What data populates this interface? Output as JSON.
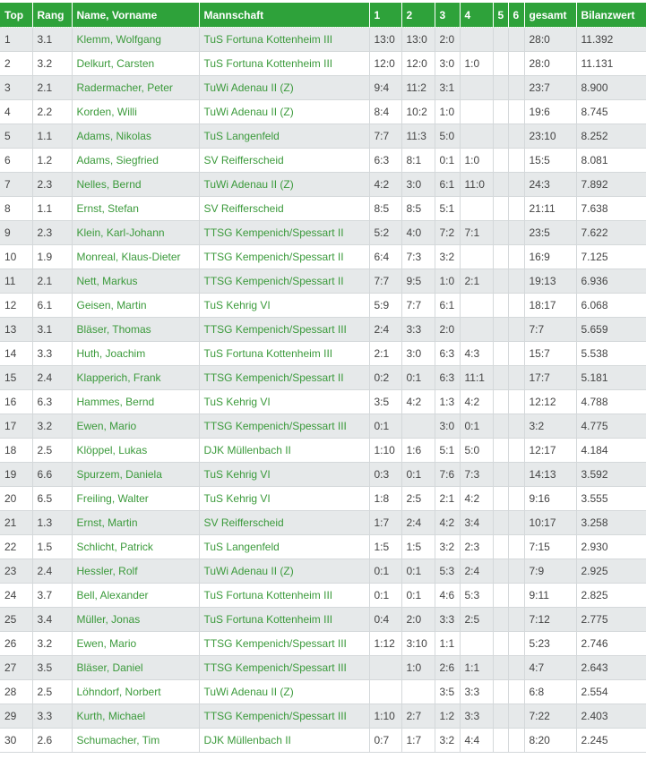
{
  "colors": {
    "header_bg": "#2ea23a",
    "link": "#3b9a3b",
    "row_alt": "#e6e9ea"
  },
  "headers": [
    "Top",
    "Rang",
    "Name, Vorname",
    "Mannschaft",
    "1",
    "2",
    "3",
    "4",
    "5",
    "6",
    "gesamt",
    "Bilanzwert"
  ],
  "rows": [
    [
      "1",
      "3.1",
      "Klemm, Wolfgang",
      "TuS Fortuna Kottenheim III",
      "13:0",
      "13:0",
      "2:0",
      "",
      "",
      "",
      "28:0",
      "11.392"
    ],
    [
      "2",
      "3.2",
      "Delkurt, Carsten",
      "TuS Fortuna Kottenheim III",
      "12:0",
      "12:0",
      "3:0",
      "1:0",
      "",
      "",
      "28:0",
      "11.131"
    ],
    [
      "3",
      "2.1",
      "Radermacher, Peter",
      "TuWi Adenau II (Z)",
      "9:4",
      "11:2",
      "3:1",
      "",
      "",
      "",
      "23:7",
      "8.900"
    ],
    [
      "4",
      "2.2",
      "Korden, Willi",
      "TuWi Adenau II (Z)",
      "8:4",
      "10:2",
      "1:0",
      "",
      "",
      "",
      "19:6",
      "8.745"
    ],
    [
      "5",
      "1.1",
      "Adams, Nikolas",
      "TuS Langenfeld",
      "7:7",
      "11:3",
      "5:0",
      "",
      "",
      "",
      "23:10",
      "8.252"
    ],
    [
      "6",
      "1.2",
      "Adams, Siegfried",
      "SV Reifferscheid",
      "6:3",
      "8:1",
      "0:1",
      "1:0",
      "",
      "",
      "15:5",
      "8.081"
    ],
    [
      "7",
      "2.3",
      "Nelles, Bernd",
      "TuWi Adenau II (Z)",
      "4:2",
      "3:0",
      "6:1",
      "11:0",
      "",
      "",
      "24:3",
      "7.892"
    ],
    [
      "8",
      "1.1",
      "Ernst, Stefan",
      "SV Reifferscheid",
      "8:5",
      "8:5",
      "5:1",
      "",
      "",
      "",
      "21:11",
      "7.638"
    ],
    [
      "9",
      "2.3",
      "Klein, Karl-Johann",
      "TTSG Kempenich/Spessart II",
      "5:2",
      "4:0",
      "7:2",
      "7:1",
      "",
      "",
      "23:5",
      "7.622"
    ],
    [
      "10",
      "1.9",
      "Monreal, Klaus-Dieter",
      "TTSG Kempenich/Spessart II",
      "6:4",
      "7:3",
      "3:2",
      "",
      "",
      "",
      "16:9",
      "7.125"
    ],
    [
      "11",
      "2.1",
      "Nett, Markus",
      "TTSG Kempenich/Spessart II",
      "7:7",
      "9:5",
      "1:0",
      "2:1",
      "",
      "",
      "19:13",
      "6.936"
    ],
    [
      "12",
      "6.1",
      "Geisen, Martin",
      "TuS Kehrig VI",
      "5:9",
      "7:7",
      "6:1",
      "",
      "",
      "",
      "18:17",
      "6.068"
    ],
    [
      "13",
      "3.1",
      "Bläser, Thomas",
      "TTSG Kempenich/Spessart III",
      "2:4",
      "3:3",
      "2:0",
      "",
      "",
      "",
      "7:7",
      "5.659"
    ],
    [
      "14",
      "3.3",
      "Huth, Joachim",
      "TuS Fortuna Kottenheim III",
      "2:1",
      "3:0",
      "6:3",
      "4:3",
      "",
      "",
      "15:7",
      "5.538"
    ],
    [
      "15",
      "2.4",
      "Klapperich, Frank",
      "TTSG Kempenich/Spessart II",
      "0:2",
      "0:1",
      "6:3",
      "11:1",
      "",
      "",
      "17:7",
      "5.181"
    ],
    [
      "16",
      "6.3",
      "Hammes, Bernd",
      "TuS Kehrig VI",
      "3:5",
      "4:2",
      "1:3",
      "4:2",
      "",
      "",
      "12:12",
      "4.788"
    ],
    [
      "17",
      "3.2",
      "Ewen, Mario",
      "TTSG Kempenich/Spessart III",
      "0:1",
      "",
      "3:0",
      "0:1",
      "",
      "",
      "3:2",
      "4.775"
    ],
    [
      "18",
      "2.5",
      "Klöppel, Lukas",
      "DJK Müllenbach II",
      "1:10",
      "1:6",
      "5:1",
      "5:0",
      "",
      "",
      "12:17",
      "4.184"
    ],
    [
      "19",
      "6.6",
      "Spurzem, Daniela",
      "TuS Kehrig VI",
      "0:3",
      "0:1",
      "7:6",
      "7:3",
      "",
      "",
      "14:13",
      "3.592"
    ],
    [
      "20",
      "6.5",
      "Freiling, Walter",
      "TuS Kehrig VI",
      "1:8",
      "2:5",
      "2:1",
      "4:2",
      "",
      "",
      "9:16",
      "3.555"
    ],
    [
      "21",
      "1.3",
      "Ernst, Martin",
      "SV Reifferscheid",
      "1:7",
      "2:4",
      "4:2",
      "3:4",
      "",
      "",
      "10:17",
      "3.258"
    ],
    [
      "22",
      "1.5",
      "Schlicht, Patrick",
      "TuS Langenfeld",
      "1:5",
      "1:5",
      "3:2",
      "2:3",
      "",
      "",
      "7:15",
      "2.930"
    ],
    [
      "23",
      "2.4",
      "Hessler, Rolf",
      "TuWi Adenau II (Z)",
      "0:1",
      "0:1",
      "5:3",
      "2:4",
      "",
      "",
      "7:9",
      "2.925"
    ],
    [
      "24",
      "3.7",
      "Bell, Alexander",
      "TuS Fortuna Kottenheim III",
      "0:1",
      "0:1",
      "4:6",
      "5:3",
      "",
      "",
      "9:11",
      "2.825"
    ],
    [
      "25",
      "3.4",
      "Müller, Jonas",
      "TuS Fortuna Kottenheim III",
      "0:4",
      "2:0",
      "3:3",
      "2:5",
      "",
      "",
      "7:12",
      "2.775"
    ],
    [
      "26",
      "3.2",
      "Ewen, Mario",
      "TTSG Kempenich/Spessart III",
      "1:12",
      "3:10",
      "1:1",
      "",
      "",
      "",
      "5:23",
      "2.746"
    ],
    [
      "27",
      "3.5",
      "Bläser, Daniel",
      "TTSG Kempenich/Spessart III",
      "",
      "1:0",
      "2:6",
      "1:1",
      "",
      "",
      "4:7",
      "2.643"
    ],
    [
      "28",
      "2.5",
      "Löhndorf, Norbert",
      "TuWi Adenau II (Z)",
      "",
      "",
      "3:5",
      "3:3",
      "",
      "",
      "6:8",
      "2.554"
    ],
    [
      "29",
      "3.3",
      "Kurth, Michael",
      "TTSG Kempenich/Spessart III",
      "1:10",
      "2:7",
      "1:2",
      "3:3",
      "",
      "",
      "7:22",
      "2.403"
    ],
    [
      "30",
      "2.6",
      "Schumacher, Tim",
      "DJK Müllenbach II",
      "0:7",
      "1:7",
      "3:2",
      "4:4",
      "",
      "",
      "8:20",
      "2.245"
    ]
  ]
}
